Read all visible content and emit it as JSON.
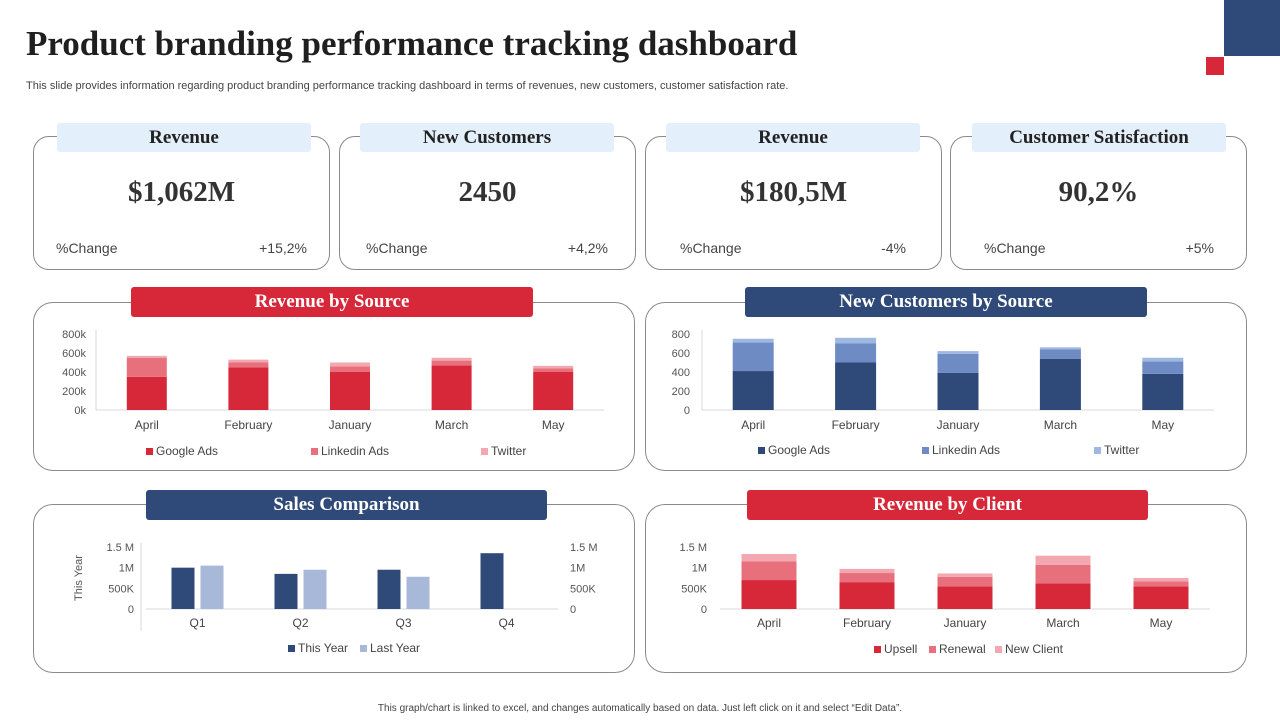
{
  "header": {
    "title": "Product branding performance tracking dashboard",
    "subtitle": "This slide provides information regarding product branding performance tracking dashboard in terms of revenues, new customers, customer satisfaction rate."
  },
  "footer": "This graph/chart is linked to excel, and changes automatically based on data. Just left click on it and select “Edit Data”.",
  "kpis": [
    {
      "label": "Revenue",
      "value": "$1,062M",
      "change_label": "%Change",
      "change": "+15,2%"
    },
    {
      "label": "New Customers",
      "value": "2450",
      "change_label": "%Change",
      "change": "+4,2%"
    },
    {
      "label": "Revenue",
      "value": "$180,5M",
      "change_label": "%Change",
      "change": "-4%"
    },
    {
      "label": "Customer Satisfaction",
      "value": "90,2%",
      "change_label": "%Change",
      "change": "+5%"
    }
  ],
  "colors": {
    "red": "#d7283a",
    "red_mid": "#e8707c",
    "red_light": "#f3a7b0",
    "blue": "#2f4a78",
    "blue_mid": "#6f8bc4",
    "blue_light": "#9fb8e0",
    "blue_last_year": "#a8b8d8"
  },
  "chart_data": [
    {
      "id": "revenue_by_source",
      "title": "Revenue by Source",
      "type": "bar",
      "stacked": true,
      "categories": [
        "April",
        "February",
        "January",
        "March",
        "May"
      ],
      "series": [
        {
          "name": "Google Ads",
          "values": [
            350,
            450,
            400,
            470,
            400
          ]
        },
        {
          "name": "Linkedin Ads",
          "values": [
            200,
            50,
            60,
            50,
            40
          ]
        },
        {
          "name": "Twitter",
          "values": [
            20,
            30,
            40,
            30,
            25
          ]
        }
      ],
      "yticks": [
        "0k",
        "200k",
        "400k",
        "600k",
        "800k"
      ],
      "ylim": [
        0,
        800
      ]
    },
    {
      "id": "new_customers_by_source",
      "title": "New Customers by Source",
      "type": "bar",
      "stacked": true,
      "categories": [
        "April",
        "February",
        "January",
        "March",
        "May"
      ],
      "series": [
        {
          "name": "Google Ads",
          "values": [
            410,
            500,
            390,
            540,
            380
          ]
        },
        {
          "name": "Linkedin Ads",
          "values": [
            300,
            200,
            200,
            100,
            130
          ]
        },
        {
          "name": "Twitter",
          "values": [
            40,
            60,
            30,
            20,
            40
          ]
        }
      ],
      "yticks": [
        "0",
        "200",
        "400",
        "600",
        "800"
      ],
      "ylim": [
        0,
        800
      ]
    },
    {
      "id": "sales_comparison",
      "title": "Sales Comparison",
      "type": "bar",
      "stacked": false,
      "categories": [
        "Q1",
        "Q2",
        "Q3",
        "Q4"
      ],
      "series": [
        {
          "name": "This Year",
          "values": [
            1.0,
            0.85,
            0.95,
            1.35
          ]
        },
        {
          "name": "Last Year",
          "values": [
            1.05,
            0.95,
            0.78,
            null
          ]
        }
      ],
      "yticks": [
        "0",
        "500K",
        "1M",
        "1.5 M"
      ],
      "yticks_right": [
        "0",
        "500K",
        "1M",
        "1.5 M"
      ],
      "ylabel": "This Year",
      "ylim": [
        0,
        1.5
      ]
    },
    {
      "id": "revenue_by_client",
      "title": "Revenue by Client",
      "type": "bar",
      "stacked": true,
      "categories": [
        "April",
        "February",
        "January",
        "March",
        "May"
      ],
      "series": [
        {
          "name": "Upsell",
          "values": [
            0.7,
            0.65,
            0.55,
            0.62,
            0.55
          ]
        },
        {
          "name": "Renewal",
          "values": [
            0.45,
            0.22,
            0.23,
            0.45,
            0.12
          ]
        },
        {
          "name": "New Client",
          "values": [
            0.18,
            0.1,
            0.08,
            0.22,
            0.08
          ]
        }
      ],
      "yticks": [
        "0",
        "500K",
        "1M",
        "1.5 M"
      ],
      "ylim": [
        0,
        1.5
      ]
    }
  ]
}
